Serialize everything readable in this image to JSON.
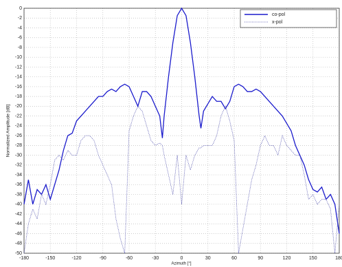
{
  "chart_data": {
    "type": "line",
    "xlabel": "Azimuth [°]",
    "ylabel": "Normalized Amplitude [dB]",
    "x": [
      -180,
      -175,
      -170,
      -165,
      -160,
      -155,
      -150,
      -145,
      -140,
      -135,
      -130,
      -125,
      -120,
      -115,
      -110,
      -105,
      -100,
      -95,
      -90,
      -85,
      -80,
      -75,
      -70,
      -65,
      -60,
      -55,
      -50,
      -45,
      -40,
      -35,
      -30,
      -25,
      -22,
      -20,
      -15,
      -10,
      -5,
      0,
      5,
      10,
      15,
      20,
      22,
      25,
      30,
      35,
      40,
      45,
      50,
      55,
      60,
      65,
      70,
      75,
      80,
      85,
      90,
      95,
      100,
      105,
      110,
      115,
      120,
      125,
      130,
      135,
      140,
      145,
      150,
      155,
      160,
      165,
      170,
      175,
      180
    ],
    "series": [
      {
        "name": "co-pol",
        "color": "#1a1acc",
        "dash": "solid",
        "values": [
          -40,
          -35,
          -40,
          -37,
          -38,
          -36,
          -39,
          -36,
          -33,
          -29,
          -26,
          -25.5,
          -23,
          -22,
          -21,
          -20,
          -19,
          -18,
          -18,
          -17,
          -16.5,
          -17,
          -16,
          -15.5,
          -16,
          -18,
          -20,
          -17,
          -17,
          -18,
          -20,
          -22,
          -26.5,
          -22,
          -14,
          -7,
          -1.5,
          0,
          -1.5,
          -7,
          -14,
          -22,
          -24.5,
          -21,
          -19.5,
          -18,
          -19,
          -19,
          -20.5,
          -19,
          -16,
          -15.5,
          -16,
          -17,
          -17,
          -16.5,
          -17,
          -18,
          -19,
          -20,
          -21,
          -22,
          -23.5,
          -25,
          -28,
          -30,
          -32,
          -35,
          -37,
          -37.5,
          -36.5,
          -39,
          -38,
          -40,
          -46
        ]
      },
      {
        "name": "x-pol",
        "color": "#4a4aaa",
        "dash": "dotted",
        "values": [
          -50,
          -44,
          -41,
          -43,
          -38,
          -40,
          -36,
          -31,
          -30,
          -31,
          -29,
          -30,
          -30,
          -27,
          -26,
          -26,
          -27,
          -30,
          -32,
          -34,
          -36,
          -43,
          -47,
          -50,
          -25,
          -22,
          -20,
          -21,
          -24,
          -27,
          -28,
          -27.5,
          -28,
          -30,
          -34,
          -38,
          -30,
          -40,
          -30,
          -33,
          -30,
          -28.5,
          -28.5,
          -28,
          -28,
          -28,
          -26,
          -22,
          -20,
          -23,
          -27,
          -50,
          -45,
          -40,
          -35,
          -32,
          -28,
          -26,
          -28,
          -28,
          -30,
          -26,
          -28,
          -29,
          -30,
          -30,
          -34,
          -39,
          -38,
          -40,
          -39,
          -39,
          -41,
          -50,
          -40
        ]
      }
    ],
    "xlim": [
      -180,
      180
    ],
    "ylim": [
      -50,
      0
    ],
    "xticks": [
      -180,
      -150,
      -120,
      -90,
      -60,
      -30,
      0,
      30,
      60,
      90,
      120,
      150,
      180
    ],
    "yticks": [
      0,
      -2,
      -4,
      -6,
      -8,
      -10,
      -12,
      -14,
      -16,
      -18,
      -20,
      -22,
      -24,
      -26,
      -28,
      -30,
      -32,
      -34,
      -36,
      -38,
      -40,
      -42,
      -44,
      -46,
      -48,
      -50
    ],
    "grid": true,
    "legend": "upper right"
  }
}
